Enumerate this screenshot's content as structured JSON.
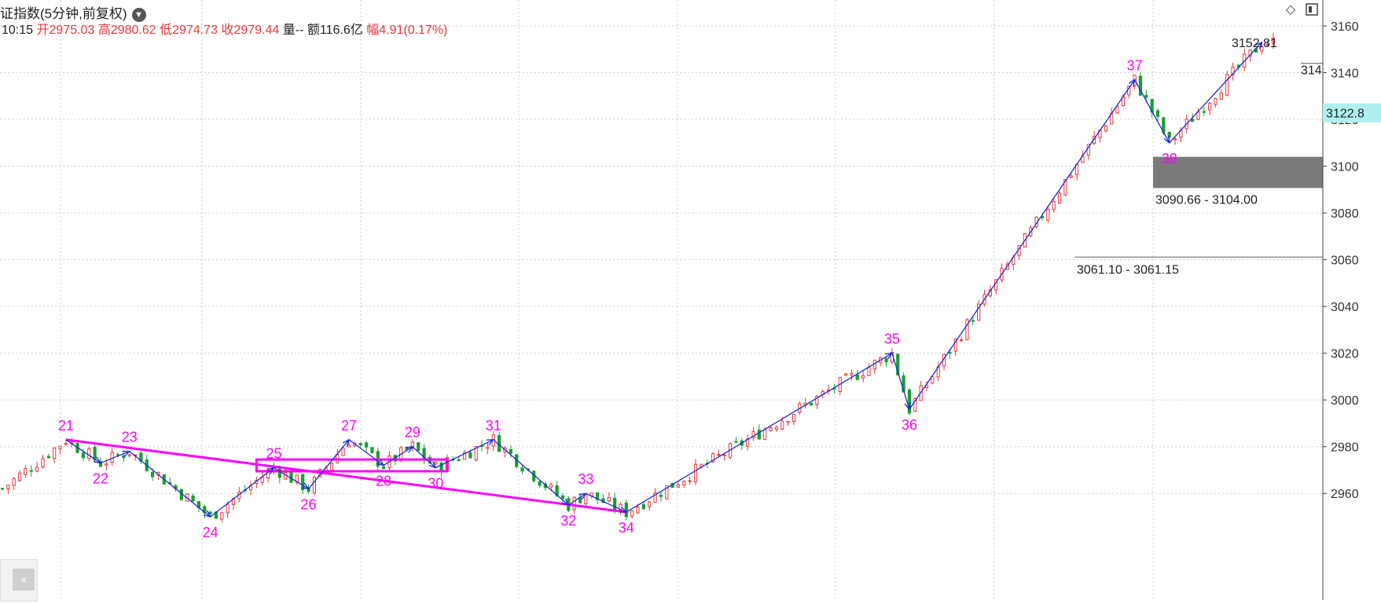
{
  "header": {
    "title": "证指数(5分钟,前复权)",
    "chevron": "chevron-down-icon",
    "time": "10:15",
    "open_label": "开",
    "open": "2975.03",
    "high_label": "高",
    "high": "2980.62",
    "low_label": "低",
    "low": "2974.73",
    "close_label": "收",
    "close": "2979.44",
    "volume_label": "量",
    "volume": "--",
    "amount_label": "额",
    "amount": "116.6亿",
    "change_label": "幅",
    "change": "4.91(0.17%)"
  },
  "toolbar": {
    "icons": [
      "diamond-icon",
      "panel-toggle-icon"
    ]
  },
  "corner": {
    "close_label": "×"
  },
  "colors": {
    "up": "#e8383d",
    "down": "#1a9e2f",
    "wave": "#1f2bd6",
    "trend": "#ff00ff",
    "gap": "#7a7a7a",
    "price_tag": "#aef0f0"
  },
  "chart_data": {
    "type": "candlestick",
    "title": "证指数(5分钟,前复权)",
    "ylim": [
      2940,
      3165
    ],
    "y_ticks": [
      2960,
      2980,
      3000,
      3020,
      3040,
      3060,
      3080,
      3100,
      3120,
      3140,
      3160
    ],
    "current_price": "3122.8",
    "wave_points": [
      {
        "label": "21",
        "bar": 11,
        "price": 2983
      },
      {
        "label": "22",
        "bar": 17,
        "price": 2973
      },
      {
        "label": "23",
        "bar": 22,
        "price": 2978
      },
      {
        "label": "24",
        "bar": 36,
        "price": 2950
      },
      {
        "label": "25",
        "bar": 47,
        "price": 2971
      },
      {
        "label": "26",
        "bar": 53,
        "price": 2962
      },
      {
        "label": "27",
        "bar": 60,
        "price": 2983
      },
      {
        "label": "28",
        "bar": 66,
        "price": 2972
      },
      {
        "label": "29",
        "bar": 71,
        "price": 2980
      },
      {
        "label": "30",
        "bar": 75,
        "price": 2971
      },
      {
        "label": "31",
        "bar": 85,
        "price": 2983
      },
      {
        "label": "32",
        "bar": 98,
        "price": 2955
      },
      {
        "label": "33",
        "bar": 101,
        "price": 2960
      },
      {
        "label": "34",
        "bar": 108,
        "price": 2952
      },
      {
        "label": "35",
        "bar": 154,
        "price": 3020
      },
      {
        "label": "36",
        "bar": 157,
        "price": 2996
      },
      {
        "label": "37",
        "bar": 196,
        "price": 3137
      },
      {
        "label": "38",
        "bar": 202,
        "price": 3110
      },
      {
        "label": "",
        "bar": 218,
        "price": 3153
      }
    ],
    "price_annotations": [
      {
        "text": "3152.81",
        "price": 3153
      },
      {
        "text": "314",
        "price": 3144
      }
    ],
    "zones": [
      {
        "label": "3090.66 - 3104.00",
        "low": 3090.66,
        "high": 3104.0
      },
      {
        "label": "3061.10 - 3061.15",
        "low": 3061.1,
        "high": 3061.15
      }
    ],
    "trendlines": [
      {
        "from": {
          "bar": 11,
          "price": 2983
        },
        "to": {
          "bar": 108,
          "price": 2952
        }
      }
    ],
    "range_box": {
      "from_bar": 44,
      "to_bar": 77,
      "low": 2969.5,
      "high": 2974.5
    },
    "grid": true
  }
}
